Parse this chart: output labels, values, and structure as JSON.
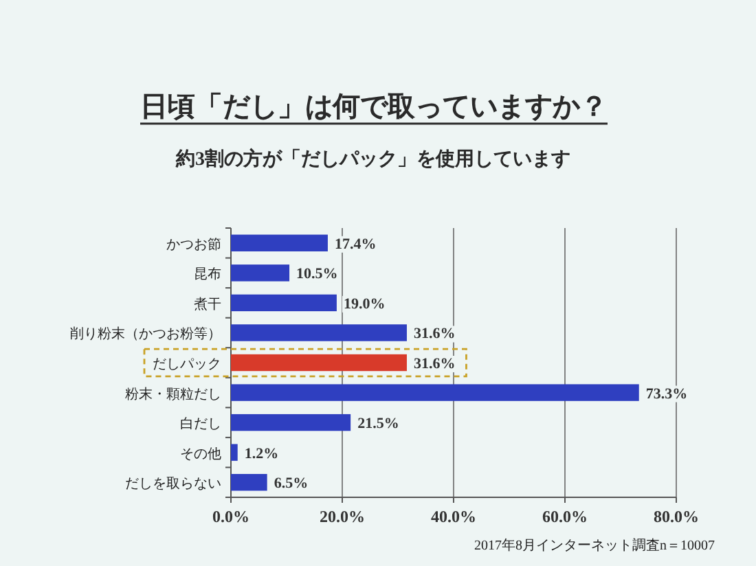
{
  "chart_data": {
    "type": "bar",
    "orientation": "horizontal",
    "title": "日頃「だし」は何で取っていますか？",
    "subtitle": "約3割の方が「だしパック」を使用しています",
    "categories": [
      "かつお節",
      "昆布",
      "煮干",
      "削り粉末（かつお粉等）",
      "だしパック",
      "粉末・顆粒だし",
      "白だし",
      "その他",
      "だしを取らない"
    ],
    "values": [
      17.4,
      10.5,
      19.0,
      31.6,
      31.6,
      73.3,
      21.5,
      1.2,
      6.5
    ],
    "colors": [
      "#2f3fc0",
      "#2f3fc0",
      "#2f3fc0",
      "#2f3fc0",
      "#d83a2a",
      "#2f3fc0",
      "#2f3fc0",
      "#2f3fc0",
      "#2f3fc0"
    ],
    "value_labels": [
      "17.4%",
      "10.5%",
      "19.0%",
      "31.6%",
      "31.6%",
      "73.3%",
      "21.5%",
      "1.2%",
      "6.5%"
    ],
    "xlim": [
      0,
      80
    ],
    "xticks": [
      {
        "value": 0,
        "label": "0.0%"
      },
      {
        "value": 20,
        "label": "20.0%"
      },
      {
        "value": 40,
        "label": "40.0%"
      },
      {
        "value": 60,
        "label": "60.0%"
      },
      {
        "value": 80,
        "label": "80.0%"
      }
    ],
    "grid": "x",
    "annotations": [
      "2017年8月インターネット調査n＝10007"
    ]
  }
}
